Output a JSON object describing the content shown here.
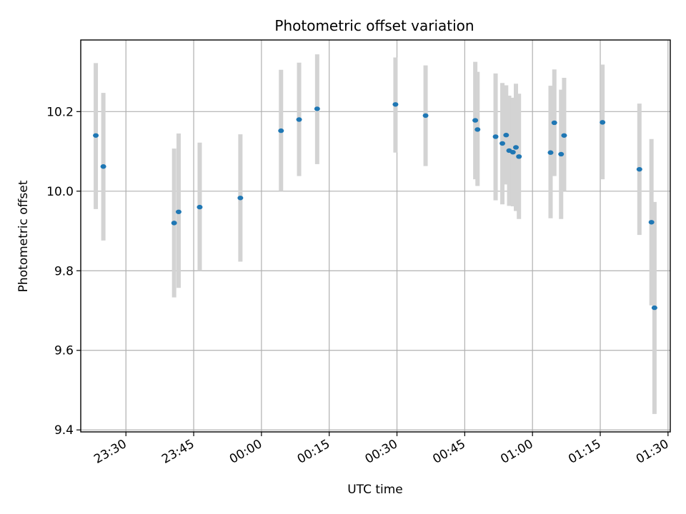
{
  "chart_data": {
    "type": "scatter",
    "title": "Photometric offset variation",
    "xlabel": "UTC time",
    "ylabel": "Photometric offset",
    "x_ticks": [
      "23:30",
      "23:45",
      "00:00",
      "00:15",
      "00:30",
      "00:45",
      "01:00",
      "01:15",
      "01:30"
    ],
    "y_ticks": [
      "9.4",
      "9.6",
      "9.8",
      "10.0",
      "10.2"
    ],
    "xlim": [
      "23:20:00",
      "01:30:30"
    ],
    "ylim": [
      9.395,
      10.38
    ],
    "grid": true,
    "colors": {
      "point": "#1f77b4",
      "errorbar": "#d3d3d3",
      "grid": "#b0b0b0"
    },
    "points": [
      {
        "t": "23:23:20",
        "y": 10.14,
        "lo": 9.955,
        "hi": 10.322
      },
      {
        "t": "23:25:00",
        "y": 10.062,
        "lo": 9.876,
        "hi": 10.247
      },
      {
        "t": "23:40:40",
        "y": 9.92,
        "lo": 9.733,
        "hi": 10.107
      },
      {
        "t": "23:41:40",
        "y": 9.948,
        "lo": 9.757,
        "hi": 10.145
      },
      {
        "t": "23:46:20",
        "y": 9.96,
        "lo": 9.8,
        "hi": 10.122
      },
      {
        "t": "23:55:20",
        "y": 9.983,
        "lo": 9.823,
        "hi": 10.143
      },
      {
        "t": "00:04:20",
        "y": 10.152,
        "lo": 10.0,
        "hi": 10.305
      },
      {
        "t": "00:08:20",
        "y": 10.18,
        "lo": 10.038,
        "hi": 10.323
      },
      {
        "t": "00:12:20",
        "y": 10.207,
        "lo": 10.068,
        "hi": 10.344
      },
      {
        "t": "00:29:40",
        "y": 10.218,
        "lo": 10.097,
        "hi": 10.336
      },
      {
        "t": "00:36:20",
        "y": 10.19,
        "lo": 10.063,
        "hi": 10.316
      },
      {
        "t": "00:47:20",
        "y": 10.178,
        "lo": 10.03,
        "hi": 10.325
      },
      {
        "t": "00:47:50",
        "y": 10.155,
        "lo": 10.013,
        "hi": 10.3
      },
      {
        "t": "00:51:50",
        "y": 10.137,
        "lo": 9.977,
        "hi": 10.296
      },
      {
        "t": "00:53:20",
        "y": 10.12,
        "lo": 9.967,
        "hi": 10.272
      },
      {
        "t": "00:54:10",
        "y": 10.141,
        "lo": 10.017,
        "hi": 10.266
      },
      {
        "t": "00:54:50",
        "y": 10.102,
        "lo": 9.963,
        "hi": 10.24
      },
      {
        "t": "00:55:40",
        "y": 10.098,
        "lo": 9.962,
        "hi": 10.235
      },
      {
        "t": "00:56:20",
        "y": 10.11,
        "lo": 9.95,
        "hi": 10.27
      },
      {
        "t": "00:57:00",
        "y": 10.087,
        "lo": 9.93,
        "hi": 10.245
      },
      {
        "t": "01:04:00",
        "y": 10.097,
        "lo": 9.932,
        "hi": 10.265
      },
      {
        "t": "01:04:50",
        "y": 10.172,
        "lo": 10.038,
        "hi": 10.306
      },
      {
        "t": "01:06:20",
        "y": 10.093,
        "lo": 9.93,
        "hi": 10.255
      },
      {
        "t": "01:07:00",
        "y": 10.14,
        "lo": 10.0,
        "hi": 10.285
      },
      {
        "t": "01:15:30",
        "y": 10.173,
        "lo": 10.03,
        "hi": 10.318
      },
      {
        "t": "01:23:40",
        "y": 10.055,
        "lo": 9.89,
        "hi": 10.22
      },
      {
        "t": "01:26:20",
        "y": 9.922,
        "lo": 9.713,
        "hi": 10.131
      },
      {
        "t": "01:27:00",
        "y": 9.707,
        "lo": 9.44,
        "hi": 9.973
      }
    ]
  }
}
